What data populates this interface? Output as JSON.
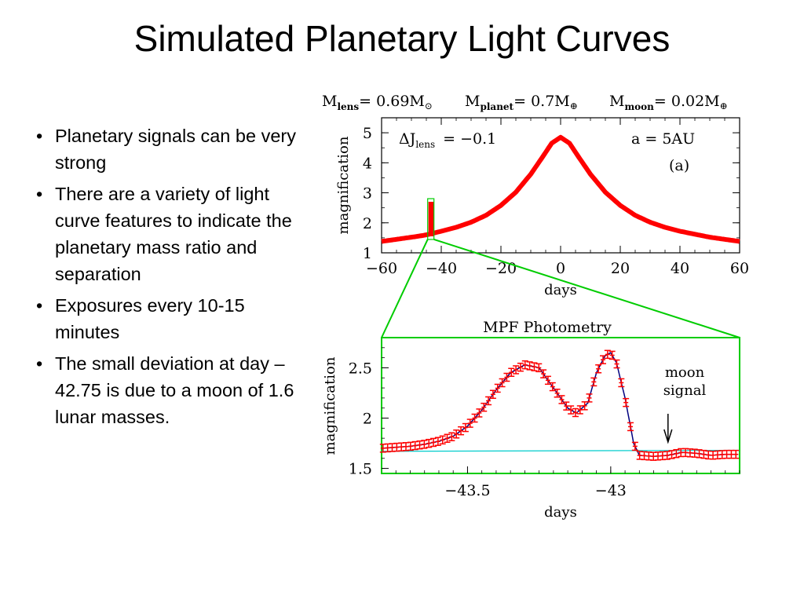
{
  "slide": {
    "title": "Simulated Planetary Light Curves",
    "bullets": [
      "Planetary signals can be very strong",
      "There are a variety of light curve features to indicate the planetary mass ratio and separation",
      "Exposures every 10-15 minutes",
      "The small deviation at day –42.75 is due to a moon of 1.6 lunar masses."
    ]
  },
  "chart_data": [
    {
      "type": "scatter",
      "header": {
        "m_lens": "M",
        "m_lens_sub": "lens",
        "m_lens_val": "= 0.69M",
        "m_lens_sym": "⊙",
        "m_planet": "M",
        "m_planet_sub": "planet",
        "m_planet_val": "= 0.7M",
        "m_planet_sym": "⊕",
        "m_moon": "M",
        "m_moon_sub": "moon",
        "m_moon_val": "= 0.02M",
        "m_moon_sym": "⊕"
      },
      "annotations": {
        "dj_prefix": "ΔJ",
        "dj_sub": "lens",
        "dj_value": "= −0.1",
        "separation": "a = 5AU",
        "panel": "(a)"
      },
      "xlabel": "days",
      "ylabel": "magnification",
      "xlim": [
        -60,
        60
      ],
      "ylim": [
        1,
        5.5
      ],
      "xticks": [
        -60,
        -40,
        -20,
        0,
        20,
        40,
        60
      ],
      "xtick_labels": [
        "−60",
        "−40",
        "−20",
        "0",
        "20",
        "40",
        "60"
      ],
      "yticks": [
        1,
        2,
        3,
        4,
        5
      ],
      "ytick_labels": [
        "1",
        "2",
        "3",
        "4",
        "5"
      ],
      "colors": {
        "data": "#ff0000",
        "zoom_box": "#00cc00"
      },
      "series": [
        {
          "x": [
            -60,
            -55,
            -50,
            -46,
            -44,
            -40,
            -35,
            -30,
            -25,
            -20,
            -15,
            -10,
            -6,
            -3,
            0,
            3,
            6,
            10,
            15,
            20,
            25,
            30,
            35,
            40,
            45,
            50,
            55,
            60
          ],
          "y": [
            1.38,
            1.45,
            1.52,
            1.58,
            1.62,
            1.72,
            1.85,
            2.02,
            2.25,
            2.58,
            3.02,
            3.62,
            4.2,
            4.65,
            4.85,
            4.65,
            4.2,
            3.62,
            3.02,
            2.58,
            2.25,
            2.02,
            1.85,
            1.72,
            1.62,
            1.52,
            1.45,
            1.38
          ]
        }
      ],
      "spike": {
        "x": -43.5,
        "y_min": 1.55,
        "y_max": 2.7
      }
    },
    {
      "type": "scatter",
      "title": "MPF Photometry",
      "xlabel": "days",
      "ylabel": "magnification",
      "xlim": [
        -43.8,
        -42.55
      ],
      "ylim": [
        1.45,
        2.8
      ],
      "xticks": [
        -43.5,
        -43
      ],
      "xtick_labels": [
        "−43.5",
        "−43"
      ],
      "yticks": [
        1.5,
        2,
        2.5
      ],
      "ytick_labels": [
        "1.5",
        "2",
        "2.5"
      ],
      "annotation": {
        "line1": "moon",
        "line2": "signal",
        "x": -42.8
      },
      "colors": {
        "data": "#ff0000",
        "model": "#000080",
        "baseline": "#00cccc"
      },
      "series": [
        {
          "x": [
            -43.8,
            -43.75,
            -43.7,
            -43.65,
            -43.6,
            -43.55,
            -43.5,
            -43.45,
            -43.4,
            -43.35,
            -43.3,
            -43.25,
            -43.2,
            -43.15,
            -43.12,
            -43.08,
            -43.05,
            -43.02,
            -43.0,
            -42.98,
            -42.95,
            -42.92,
            -42.9,
            -42.85,
            -42.8,
            -42.75,
            -42.7,
            -42.65,
            -42.6,
            -42.55
          ],
          "y": [
            1.7,
            1.71,
            1.72,
            1.74,
            1.77,
            1.82,
            1.92,
            2.08,
            2.28,
            2.45,
            2.53,
            2.5,
            2.3,
            2.1,
            2.05,
            2.15,
            2.45,
            2.62,
            2.65,
            2.55,
            2.2,
            1.75,
            1.63,
            1.62,
            1.63,
            1.66,
            1.65,
            1.63,
            1.64,
            1.64
          ]
        }
      ],
      "baseline": {
        "x": [
          -43.8,
          -42.55
        ],
        "y": [
          1.67,
          1.68
        ]
      }
    }
  ]
}
